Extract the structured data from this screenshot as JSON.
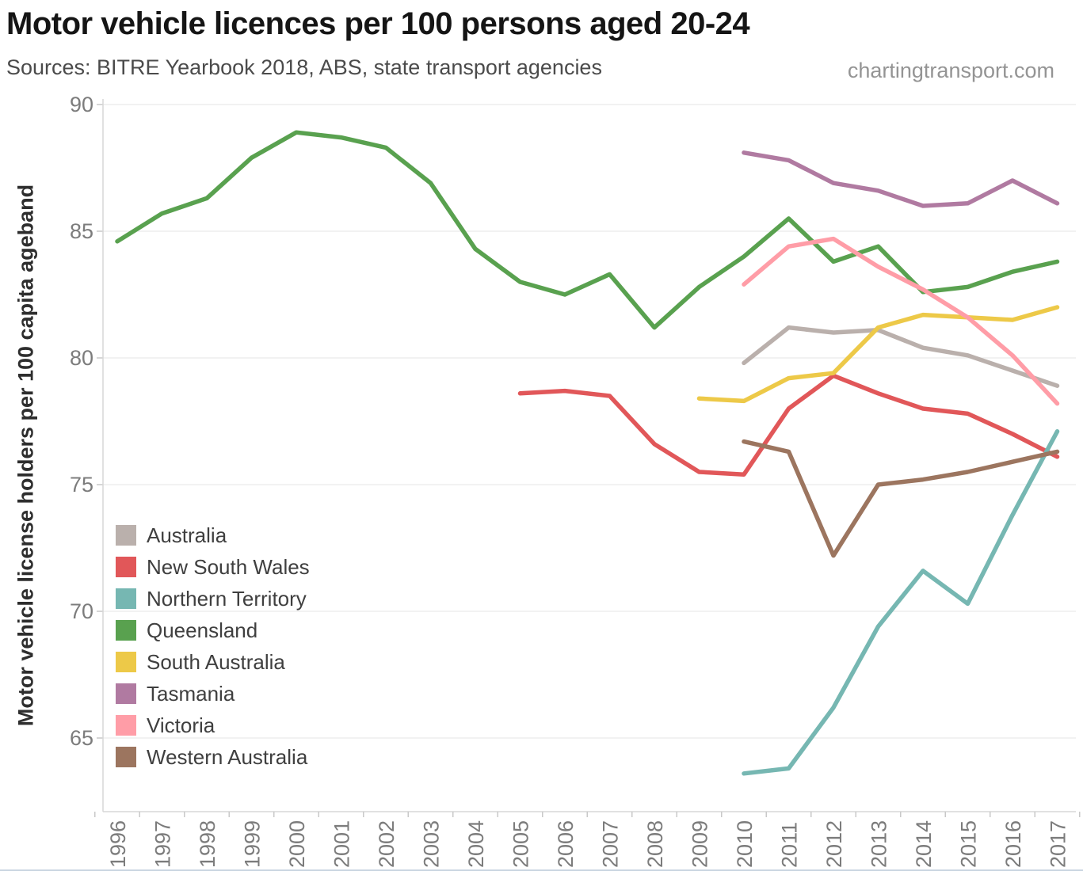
{
  "header": {
    "title": "Motor vehicle licences per 100 persons aged 20-24",
    "subtitle": "Sources: BITRE Yearbook 2018, ABS, state transport agencies",
    "watermark": "chartingtransport.com"
  },
  "chart_data": {
    "type": "line",
    "title": "Motor vehicle licences per 100 persons aged 20-24",
    "xlabel": "",
    "ylabel": "Motor vehicle license holders per 100 capita ageband",
    "x_ticks": [
      1996,
      1997,
      1998,
      1999,
      2000,
      2001,
      2002,
      2003,
      2004,
      2005,
      2006,
      2007,
      2008,
      2009,
      2010,
      2011,
      2012,
      2013,
      2014,
      2015,
      2016,
      2017
    ],
    "y_ticks": [
      65,
      70,
      75,
      80,
      85,
      90
    ],
    "ylim": [
      62.1,
      90.2
    ],
    "xlim": [
      1995.5,
      2017.5
    ],
    "grid": true,
    "legend_position": "inside bottom-left",
    "series": [
      {
        "name": "Australia",
        "color": "#bab0ac",
        "start_year": 2010,
        "values": [
          79.8,
          81.2,
          81.0,
          81.1,
          80.4,
          80.1,
          79.5,
          78.9
        ]
      },
      {
        "name": "New South Wales",
        "color": "#e15759",
        "start_year": 2005,
        "values": [
          78.6,
          78.7,
          78.5,
          76.6,
          75.5,
          75.4,
          78.0,
          79.3,
          78.6,
          78.0,
          77.8,
          77.0,
          76.1
        ]
      },
      {
        "name": "Northern Territory",
        "color": "#76b7b2",
        "start_year": 2010,
        "values": [
          63.6,
          63.8,
          66.2,
          69.4,
          71.6,
          70.3,
          73.8,
          77.1
        ]
      },
      {
        "name": "Queensland",
        "color": "#59a14f",
        "start_year": 1996,
        "values": [
          84.6,
          85.7,
          86.3,
          87.9,
          88.9,
          88.7,
          88.3,
          86.9,
          84.3,
          83.0,
          82.5,
          83.3,
          81.2,
          82.8,
          84.0,
          85.5,
          83.8,
          84.4,
          82.6,
          82.8,
          83.4,
          83.8
        ]
      },
      {
        "name": "South Australia",
        "color": "#edc948",
        "start_year": 2009,
        "values": [
          78.4,
          78.3,
          79.2,
          79.4,
          81.2,
          81.7,
          81.6,
          81.5,
          82.0
        ]
      },
      {
        "name": "Tasmania",
        "color": "#b07aa1",
        "start_year": 2010,
        "values": [
          88.1,
          87.8,
          86.9,
          86.6,
          86.0,
          86.1,
          87.0,
          86.1
        ]
      },
      {
        "name": "Victoria",
        "color": "#ff9da7",
        "start_year": 2010,
        "values": [
          82.9,
          84.4,
          84.7,
          83.6,
          82.7,
          81.6,
          80.1,
          78.2
        ]
      },
      {
        "name": "Western Australia",
        "color": "#9c755f",
        "start_year": 2010,
        "values": [
          76.7,
          76.3,
          72.2,
          75.0,
          75.2,
          75.5,
          75.9,
          76.3
        ]
      }
    ]
  }
}
